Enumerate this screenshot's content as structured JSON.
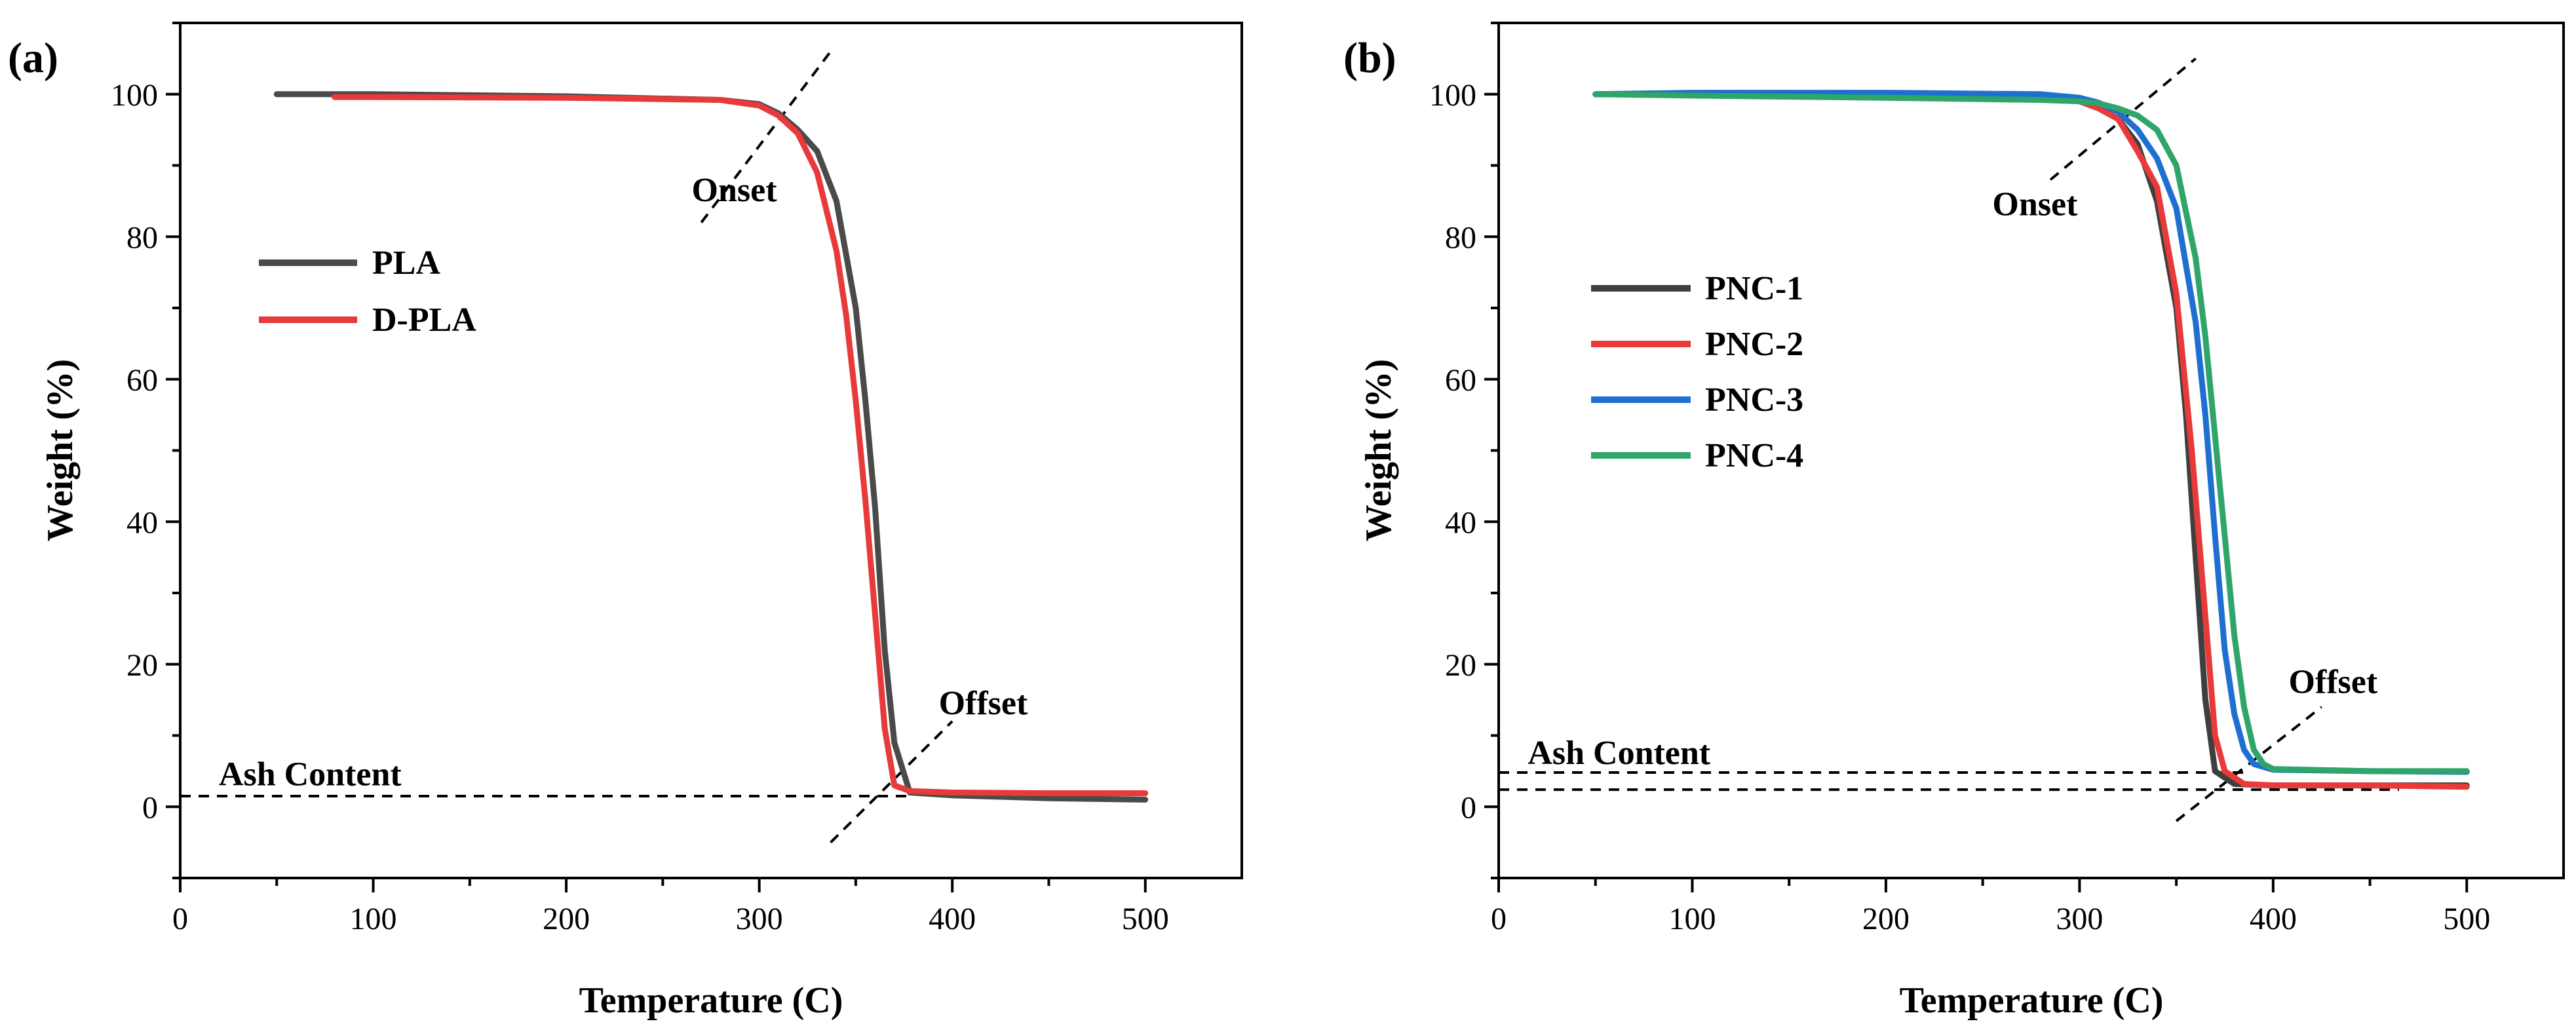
{
  "figure": {
    "colors": {
      "PLA": "#4a4a4a",
      "D-PLA": "#e8393b",
      "PNC-1": "#3f3f3f",
      "PNC-2": "#e8393b",
      "PNC-3": "#1f6fd1",
      "PNC-4": "#2fa56a",
      "axis": "#000000",
      "guide": "#000000"
    }
  },
  "chart_data": [
    {
      "type": "line",
      "id": "a",
      "panel_label": "(a)",
      "title": "",
      "xlabel": "Temperature (C)",
      "ylabel": "Weight (%)",
      "xlim": [
        0,
        550
      ],
      "ylim": [
        -10,
        110
      ],
      "xticks": [
        0,
        100,
        200,
        300,
        400,
        500
      ],
      "yticks": [
        0,
        20,
        40,
        60,
        80,
        100
      ],
      "grid": false,
      "legend_position": "upper-left",
      "series": [
        {
          "name": "PLA",
          "x": [
            50,
            100,
            200,
            280,
            300,
            310,
            320,
            330,
            340,
            350,
            355,
            360,
            365,
            370,
            378,
            400,
            450,
            500
          ],
          "y": [
            100,
            100,
            99.7,
            99.2,
            98.6,
            97.3,
            95,
            92,
            85,
            70,
            57,
            42,
            22,
            9,
            2,
            1.6,
            1.2,
            1.0
          ]
        },
        {
          "name": "D-PLA",
          "x": [
            80,
            100,
            200,
            280,
            300,
            310,
            320,
            330,
            340,
            345,
            350,
            355,
            360,
            365,
            370,
            378,
            400,
            450,
            500
          ],
          "y": [
            99.6,
            99.6,
            99.5,
            99.2,
            98.4,
            97,
            94.5,
            89,
            78,
            69,
            57,
            43,
            27,
            11,
            3,
            2.2,
            2.0,
            1.9,
            1.9
          ]
        }
      ],
      "annotations": [
        {
          "text": "Onset",
          "x": 265,
          "y": 85
        },
        {
          "text": "Offset",
          "x": 393,
          "y": 13
        },
        {
          "text": "Ash Content",
          "x": 20,
          "y": 3
        }
      ],
      "guide_lines": [
        {
          "x": [
            270,
            337
          ],
          "y": [
            82,
            106
          ]
        },
        {
          "x": [
            337,
            400
          ],
          "y": [
            -5,
            12
          ]
        },
        {
          "x": [
            0,
            380
          ],
          "y": [
            1.5,
            1.5
          ]
        }
      ]
    },
    {
      "type": "line",
      "id": "b",
      "panel_label": "(b)",
      "title": "",
      "xlabel": "Temperature (C)",
      "ylabel": "Weight (%)",
      "xlim": [
        0,
        550
      ],
      "ylim": [
        -10,
        110
      ],
      "xticks": [
        0,
        100,
        200,
        300,
        400,
        500
      ],
      "yticks": [
        0,
        20,
        40,
        60,
        80,
        100
      ],
      "grid": false,
      "legend_position": "upper-left",
      "series": [
        {
          "name": "PNC-1",
          "x": [
            50,
            100,
            200,
            280,
            300,
            310,
            320,
            330,
            340,
            350,
            355,
            360,
            365,
            370,
            380,
            400,
            450,
            500
          ],
          "y": [
            100,
            100,
            99.8,
            99.5,
            99,
            98,
            96.5,
            93,
            85,
            70,
            55,
            35,
            15,
            5,
            3.2,
            3.0,
            3.0,
            3.0
          ]
        },
        {
          "name": "PNC-2",
          "x": [
            50,
            100,
            200,
            280,
            300,
            310,
            320,
            330,
            340,
            350,
            358,
            364,
            370,
            375,
            385,
            400,
            450,
            500
          ],
          "y": [
            100,
            100,
            99.8,
            99.5,
            99,
            98,
            96.5,
            92,
            87,
            72,
            50,
            30,
            10,
            5,
            3.2,
            3.0,
            3.0,
            2.8
          ]
        },
        {
          "name": "PNC-3",
          "x": [
            50,
            100,
            200,
            280,
            300,
            310,
            320,
            330,
            340,
            350,
            360,
            365,
            370,
            375,
            380,
            385,
            390,
            400,
            450,
            500
          ],
          "y": [
            100,
            100.2,
            100.2,
            100,
            99.5,
            98.8,
            97.5,
            95,
            91,
            84,
            68,
            55,
            38,
            22,
            13,
            8,
            6,
            5.2,
            5.0,
            4.9
          ]
        },
        {
          "name": "PNC-4",
          "x": [
            50,
            100,
            200,
            280,
            300,
            310,
            320,
            330,
            340,
            350,
            360,
            365,
            370,
            375,
            380,
            385,
            390,
            395,
            400,
            450,
            500
          ],
          "y": [
            100,
            99.8,
            99.5,
            99.2,
            99,
            98.7,
            98,
            97,
            95,
            90,
            77,
            66,
            52,
            38,
            24,
            14,
            8,
            6,
            5.3,
            5.0,
            5.0
          ]
        }
      ],
      "annotations": [
        {
          "text": "Onset",
          "x": 255,
          "y": 83
        },
        {
          "text": "Offset",
          "x": 408,
          "y": 16
        },
        {
          "text": "Ash Content",
          "x": 15,
          "y": 6
        }
      ],
      "guide_lines": [
        {
          "x": [
            285,
            360
          ],
          "y": [
            88,
            105
          ]
        },
        {
          "x": [
            350,
            425
          ],
          "y": [
            -2,
            14
          ]
        },
        {
          "x": [
            0,
            385
          ],
          "y": [
            4.8,
            4.8
          ]
        },
        {
          "x": [
            0,
            465
          ],
          "y": [
            2.4,
            2.4
          ]
        }
      ]
    }
  ]
}
